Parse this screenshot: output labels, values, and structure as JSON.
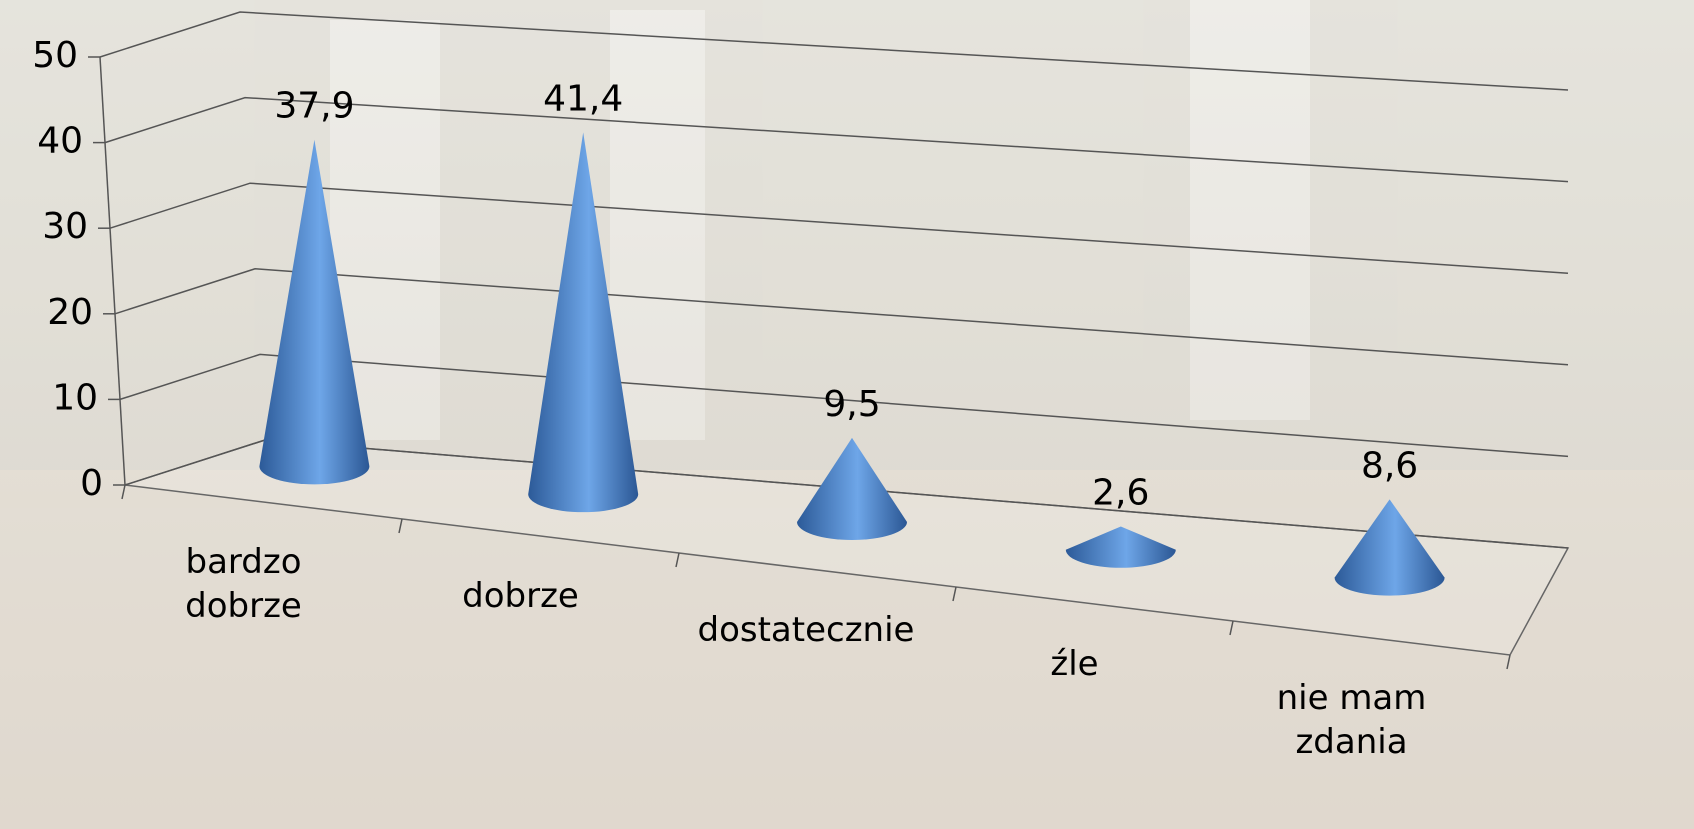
{
  "chart_data": {
    "type": "cone",
    "categories": [
      "bardzo dobrze",
      "dobrze",
      "dostatecznie",
      "źle",
      "nie mam zdania"
    ],
    "values": [
      37.9,
      41.4,
      9.5,
      2.6,
      8.6
    ],
    "value_labels": [
      "37,9",
      "41,4",
      "9,5",
      "2,6",
      "8,6"
    ],
    "color": "#4a82cc",
    "ylim": [
      0,
      50
    ],
    "yticks": [
      0,
      10,
      20,
      30,
      40,
      50
    ],
    "grid": true
  }
}
